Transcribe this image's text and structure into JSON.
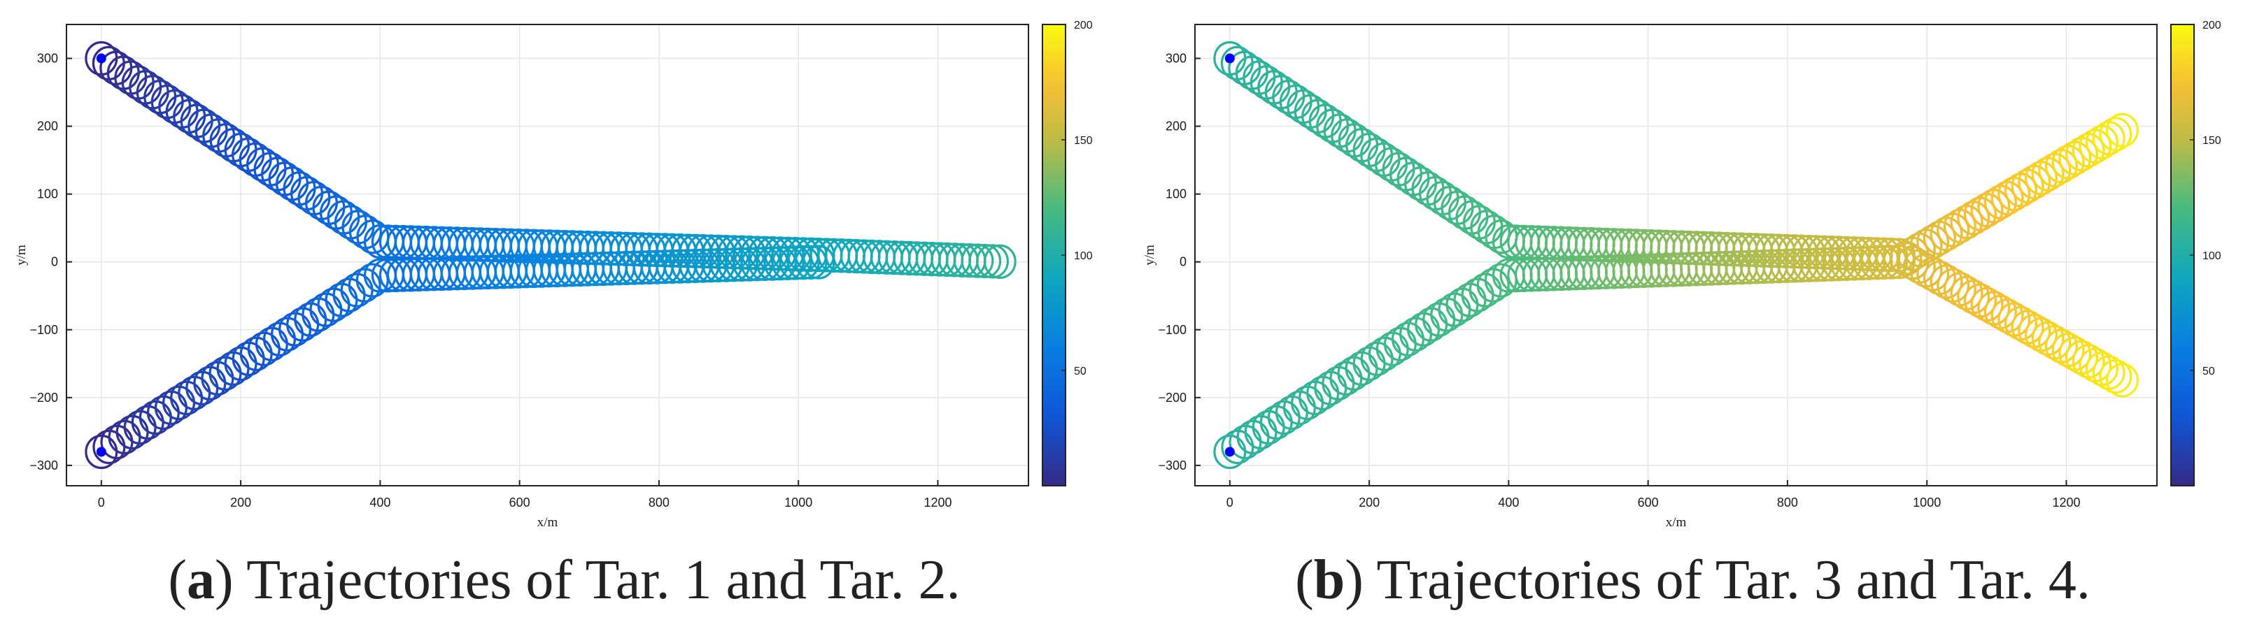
{
  "chart_data": [
    {
      "type": "line",
      "panel_letter": "a",
      "caption_text": "Trajectories of Tar. 1 and Tar. 2.",
      "xlabel": "x/m",
      "ylabel": "y/m",
      "xlim": [
        -50,
        1330
      ],
      "ylim": [
        -330,
        350
      ],
      "x_ticks": [
        0,
        200,
        400,
        600,
        800,
        1000,
        1200
      ],
      "y_ticks": [
        -300,
        -200,
        -100,
        0,
        100,
        200,
        300
      ],
      "grid": true,
      "colormap": "parula",
      "colorbar": {
        "range": [
          0,
          200
        ],
        "ticks": [
          50,
          100,
          150,
          200
        ]
      },
      "loop_radius": 22,
      "series": [
        {
          "segments": [
            {
              "from": [
                0,
                300
              ],
              "to": [
                400,
                30
              ],
              "t0": 0,
              "t1": 50,
              "loops": 38
            },
            {
              "from": [
                400,
                30
              ],
              "to": [
                1040,
                10
              ],
              "t0": 50,
              "t1": 90,
              "loops": 58
            },
            {
              "from": [
                1040,
                10
              ],
              "to": [
                1300,
                0
              ],
              "t0": 90,
              "t1": 110,
              "loops": 24
            }
          ],
          "start_marker": [
            0,
            300
          ]
        },
        {
          "segments": [
            {
              "from": [
                0,
                -280
              ],
              "to": [
                400,
                -20
              ],
              "t0": 0,
              "t1": 50,
              "loops": 36
            },
            {
              "from": [
                400,
                -20
              ],
              "to": [
                1040,
                0
              ],
              "t0": 50,
              "t1": 90,
              "loops": 58
            }
          ],
          "start_marker": [
            0,
            -280
          ]
        }
      ]
    },
    {
      "type": "line",
      "panel_letter": "b",
      "caption_text": "Trajectories of Tar. 3 and Tar. 4.",
      "xlabel": "x/m",
      "ylabel": "y/m",
      "xlim": [
        -50,
        1330
      ],
      "ylim": [
        -330,
        350
      ],
      "x_ticks": [
        0,
        200,
        400,
        600,
        800,
        1000,
        1200
      ],
      "y_ticks": [
        -300,
        -200,
        -100,
        0,
        100,
        200,
        300
      ],
      "grid": true,
      "colormap": "parula",
      "colorbar": {
        "range": [
          0,
          200
        ],
        "ticks": [
          50,
          100,
          150,
          200
        ]
      },
      "loop_radius": 22,
      "series": [
        {
          "segments": [
            {
              "from": [
                0,
                300
              ],
              "to": [
                400,
                30
              ],
              "t0": 105,
              "t1": 120,
              "loops": 38
            },
            {
              "from": [
                400,
                30
              ],
              "to": [
                960,
                10
              ],
              "t0": 120,
              "t1": 160,
              "loops": 52
            },
            {
              "from": [
                960,
                10
              ],
              "to": [
                1290,
                -180
              ],
              "t0": 160,
              "t1": 195,
              "loops": 34
            }
          ],
          "start_marker": [
            0,
            300
          ]
        },
        {
          "segments": [
            {
              "from": [
                0,
                -280
              ],
              "to": [
                400,
                -20
              ],
              "t0": 105,
              "t1": 120,
              "loops": 36
            },
            {
              "from": [
                400,
                -20
              ],
              "to": [
                960,
                0
              ],
              "t0": 120,
              "t1": 160,
              "loops": 52
            },
            {
              "from": [
                960,
                0
              ],
              "to": [
                1290,
                200
              ],
              "t0": 160,
              "t1": 195,
              "loops": 34
            }
          ],
          "start_marker": [
            0,
            -280
          ]
        }
      ]
    }
  ]
}
